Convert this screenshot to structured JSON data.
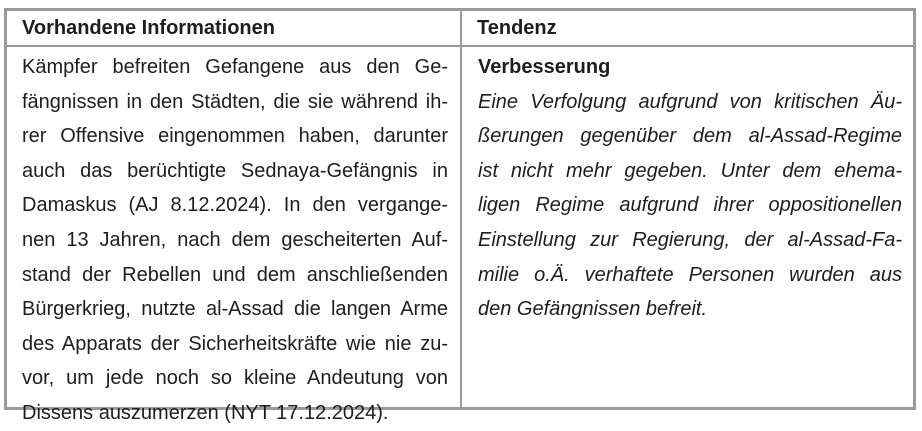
{
  "table": {
    "headers": [
      "Vorhandene Informationen",
      "Tendenz"
    ],
    "left_lines": [
      "Kämpfer befreiten Gefangene aus den Ge-",
      "fängnissen in den Städten, die sie während ih-",
      "rer Offensive eingenommen haben, darunter",
      "auch das berüchtigte Sednaya-Gefängnis in",
      "Damaskus (AJ 8.12.2024). In den vergange-",
      "nen 13 Jahren, nach dem gescheiterten Auf-",
      "stand der Rebellen und dem anschließenden",
      "Bürgerkrieg, nutzte al-Assad die langen Arme",
      "des Apparats der Sicherheitskräfte wie nie zu-",
      "vor, um jede noch so kleine Andeutung von",
      "Dissens auszumerzen (NYT 17.12.2024)."
    ],
    "tendency_label": "Verbesserung",
    "right_lines": [
      "Eine Verfolgung aufgrund von kritischen Äu-",
      "ßerungen gegenüber dem al-Assad-Regime",
      "ist nicht mehr gegeben. Unter dem ehema-",
      "ligen Regime aufgrund ihrer oppositionellen",
      "Einstellung zur Regierung, der al-Assad-Fa-",
      "milie o.Ä. verhaftete Personen wurden aus",
      "den Gefängnissen befreit."
    ]
  }
}
